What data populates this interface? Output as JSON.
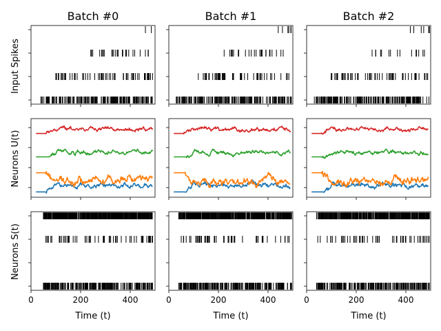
{
  "chart_data": {
    "type": "raster-and-line-grid",
    "columns": [
      {
        "title": "Batch #0"
      },
      {
        "title": "Batch #1"
      },
      {
        "title": "Batch #2"
      }
    ],
    "rows": [
      {
        "ylabel": "Input Spikes",
        "type": "raster",
        "rows": 4
      },
      {
        "ylabel": "Neurons U(t)",
        "type": "line",
        "series_colors": [
          "#1f77b4",
          "#ff7f0e",
          "#2ca02c",
          "#d62728"
        ]
      },
      {
        "ylabel": "Neurons S(t)",
        "type": "raster",
        "rows": 4
      }
    ],
    "xlabel": "Time (t)",
    "xlim": [
      0,
      500
    ],
    "xticks": [
      0,
      200,
      400
    ],
    "xtick_labels": [
      "0",
      "200",
      "400"
    ],
    "input_spikes": [
      {
        "batch": 0,
        "trains": [
          {
            "start": 40,
            "end": 490,
            "rate": 0.35
          },
          {
            "start": 95,
            "end": 490,
            "rate": 0.14
          },
          {
            "start": 240,
            "end": 490,
            "rate": 0.08
          },
          {
            "start": 440,
            "end": 490,
            "rate": 0.06
          }
        ]
      },
      {
        "batch": 1,
        "trains": [
          {
            "start": 30,
            "end": 495,
            "rate": 0.35
          },
          {
            "start": 115,
            "end": 495,
            "rate": 0.14
          },
          {
            "start": 220,
            "end": 495,
            "rate": 0.08
          },
          {
            "start": 440,
            "end": 495,
            "rate": 0.06
          }
        ]
      },
      {
        "batch": 2,
        "trains": [
          {
            "start": 30,
            "end": 495,
            "rate": 0.35
          },
          {
            "start": 85,
            "end": 495,
            "rate": 0.14
          },
          {
            "start": 240,
            "end": 495,
            "rate": 0.08
          },
          {
            "start": 400,
            "end": 495,
            "rate": 0.06
          }
        ]
      }
    ],
    "membrane": [
      {
        "batch": 0,
        "series": [
          {
            "color": "#1f77b4",
            "rest": -0.35,
            "onset": 60,
            "level": -0.05,
            "noise": 0.06
          },
          {
            "color": "#ff7f0e",
            "rest": 0.55,
            "onset": 60,
            "level": 0.15,
            "noise": 0.1
          },
          {
            "color": "#2ca02c",
            "rest": 1.3,
            "onset": 75,
            "level": 1.5,
            "noise": 0.05
          },
          {
            "color": "#d62728",
            "rest": 2.4,
            "onset": 60,
            "level": 2.6,
            "noise": 0.05
          }
        ]
      },
      {
        "batch": 1,
        "series": [
          {
            "color": "#1f77b4",
            "rest": -0.35,
            "onset": 65,
            "level": -0.05,
            "noise": 0.06
          },
          {
            "color": "#ff7f0e",
            "rest": 0.55,
            "onset": 65,
            "level": 0.15,
            "noise": 0.1
          },
          {
            "color": "#2ca02c",
            "rest": 1.3,
            "onset": 70,
            "level": 1.5,
            "noise": 0.05
          },
          {
            "color": "#d62728",
            "rest": 2.4,
            "onset": 60,
            "level": 2.6,
            "noise": 0.05
          }
        ]
      },
      {
        "batch": 2,
        "series": [
          {
            "color": "#1f77b4",
            "rest": -0.35,
            "onset": 70,
            "level": -0.05,
            "noise": 0.06
          },
          {
            "color": "#ff7f0e",
            "rest": 0.55,
            "onset": 60,
            "level": 0.15,
            "noise": 0.1
          },
          {
            "color": "#2ca02c",
            "rest": 1.3,
            "onset": 60,
            "level": 1.5,
            "noise": 0.05
          },
          {
            "color": "#d62728",
            "rest": 2.4,
            "onset": 60,
            "level": 2.6,
            "noise": 0.05
          }
        ]
      }
    ],
    "output_spikes": [
      {
        "batch": 0,
        "trains": [
          {
            "start": 50,
            "end": 490,
            "rate": 0.4
          },
          {
            "start": 0,
            "end": 0,
            "rate": 0
          },
          {
            "start": 60,
            "end": 490,
            "rate": 0.12
          },
          {
            "start": 50,
            "end": 490,
            "rate": 0.7
          }
        ]
      },
      {
        "batch": 1,
        "trains": [
          {
            "start": 40,
            "end": 495,
            "rate": 0.4
          },
          {
            "start": 0,
            "end": 0,
            "rate": 0
          },
          {
            "start": 50,
            "end": 495,
            "rate": 0.12
          },
          {
            "start": 40,
            "end": 495,
            "rate": 0.7
          }
        ]
      },
      {
        "batch": 2,
        "trains": [
          {
            "start": 40,
            "end": 495,
            "rate": 0.4
          },
          {
            "start": 0,
            "end": 0,
            "rate": 0
          },
          {
            "start": 45,
            "end": 495,
            "rate": 0.12
          },
          {
            "start": 40,
            "end": 495,
            "rate": 0.7
          }
        ]
      }
    ]
  }
}
